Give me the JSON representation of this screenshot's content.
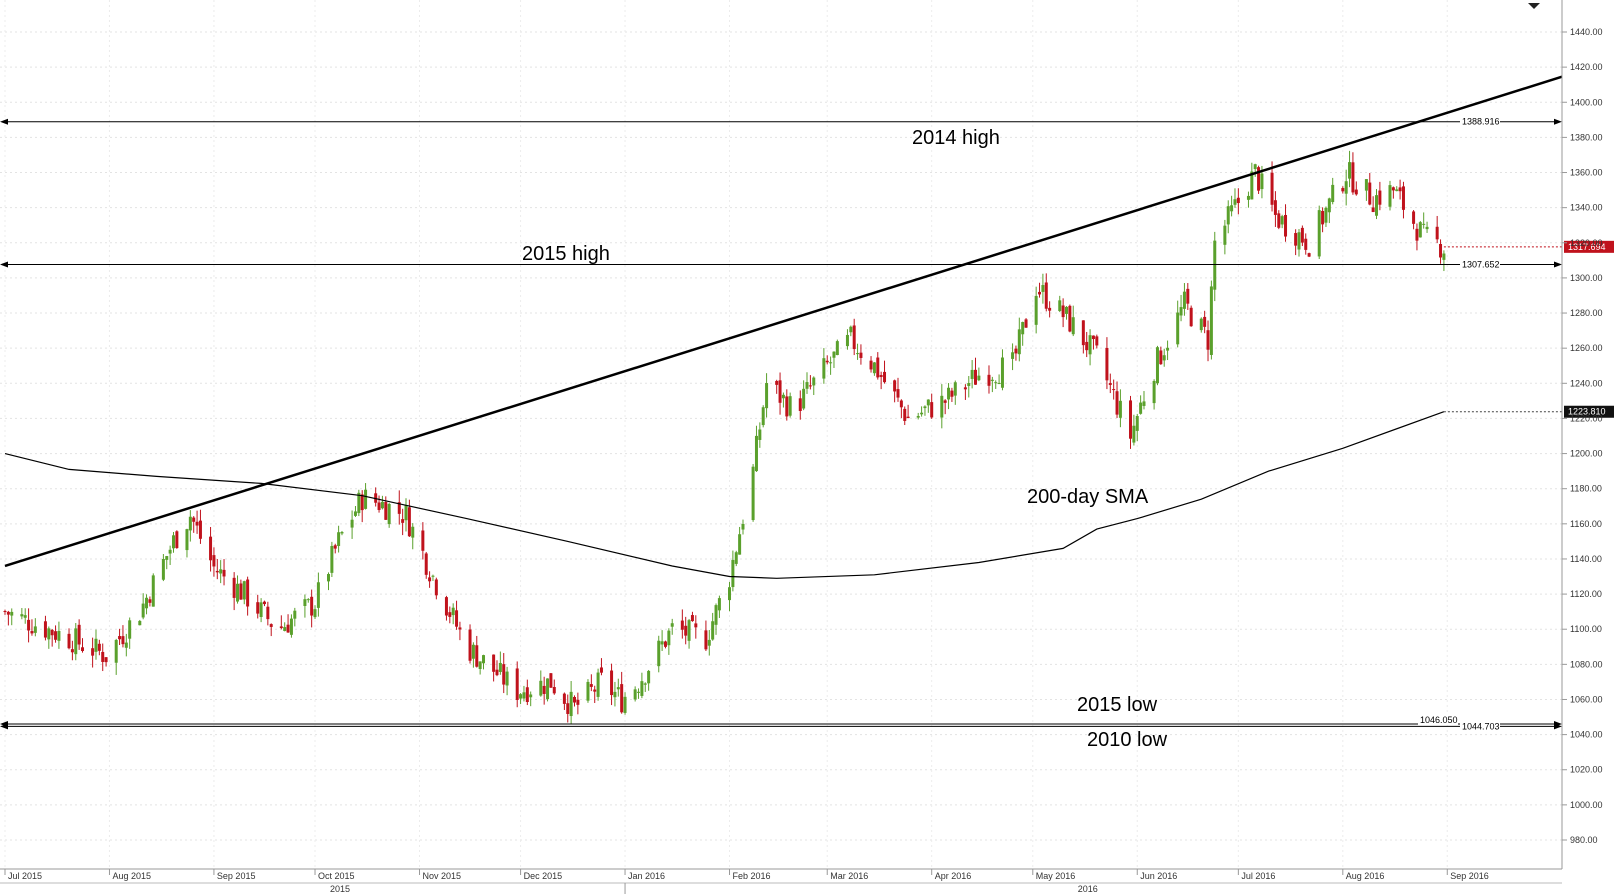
{
  "chart_data": {
    "type": "candlestick",
    "title": "",
    "ylim": [
      960,
      1460
    ],
    "grid": true,
    "y_ticks": [
      "980.00",
      "1000.00",
      "1020.00",
      "1040.00",
      "1060.00",
      "1080.00",
      "1100.00",
      "1120.00",
      "1140.00",
      "1160.00",
      "1180.00",
      "1200.00",
      "1220.00",
      "1240.00",
      "1260.00",
      "1280.00",
      "1300.00",
      "1320.00",
      "1340.00",
      "1360.00",
      "1380.00",
      "1400.00",
      "1420.00",
      "1440.00"
    ],
    "x_months": [
      "Jul 2015",
      "Aug 2015",
      "Sep 2015",
      "Oct 2015",
      "Nov 2015",
      "Dec 2015",
      "Jan 2016",
      "Feb 2016",
      "Mar 2016",
      "Apr 2016",
      "May 2016",
      "Jun 2016",
      "Jul 2016",
      "Aug 2016",
      "Sep 2016"
    ],
    "x_years": [
      "2015",
      "2016"
    ],
    "close_sketch": [
      [
        "2015-07-01",
        1110
      ],
      [
        "2015-07-20",
        1095
      ],
      [
        "2015-07-31",
        1085
      ],
      [
        "2015-08-10",
        1110
      ],
      [
        "2015-08-20",
        1150
      ],
      [
        "2015-08-25",
        1165
      ],
      [
        "2015-09-01",
        1135
      ],
      [
        "2015-09-10",
        1120
      ],
      [
        "2015-09-20",
        1100
      ],
      [
        "2015-10-01",
        1115
      ],
      [
        "2015-10-08",
        1150
      ],
      [
        "2015-10-15",
        1175
      ],
      [
        "2015-10-20",
        1172
      ],
      [
        "2015-10-28",
        1165
      ],
      [
        "2015-11-05",
        1130
      ],
      [
        "2015-11-15",
        1090
      ],
      [
        "2015-11-30",
        1065
      ],
      [
        "2015-12-10",
        1070
      ],
      [
        "2015-12-17",
        1055
      ],
      [
        "2015-12-25",
        1070
      ],
      [
        "2015-12-31",
        1060
      ],
      [
        "2016-01-05",
        1070
      ],
      [
        "2016-01-15",
        1100
      ],
      [
        "2016-01-25",
        1095
      ],
      [
        "2016-02-01",
        1130
      ],
      [
        "2016-02-08",
        1190
      ],
      [
        "2016-02-12",
        1240
      ],
      [
        "2016-02-20",
        1225
      ],
      [
        "2016-03-01",
        1250
      ],
      [
        "2016-03-08",
        1265
      ],
      [
        "2016-03-15",
        1250
      ],
      [
        "2016-03-25",
        1220
      ],
      [
        "2016-04-05",
        1230
      ],
      [
        "2016-04-15",
        1245
      ],
      [
        "2016-04-25",
        1250
      ],
      [
        "2016-05-02",
        1295
      ],
      [
        "2016-05-12",
        1275
      ],
      [
        "2016-05-20",
        1255
      ],
      [
        "2016-05-30",
        1210
      ],
      [
        "2016-06-05",
        1245
      ],
      [
        "2016-06-15",
        1285
      ],
      [
        "2016-06-22",
        1265
      ],
      [
        "2016-06-24",
        1320
      ],
      [
        "2016-07-06",
        1360
      ],
      [
        "2016-07-12",
        1335
      ],
      [
        "2016-07-22",
        1320
      ],
      [
        "2016-08-02",
        1360
      ],
      [
        "2016-08-10",
        1345
      ],
      [
        "2016-08-16",
        1350
      ],
      [
        "2016-08-25",
        1323
      ],
      [
        "2016-08-31",
        1317.694
      ]
    ],
    "sma200": {
      "name": "200-day SMA",
      "points": [
        [
          "2015-07-01",
          1200
        ],
        [
          "2015-07-20",
          1191
        ],
        [
          "2015-08-15",
          1187
        ],
        [
          "2015-09-15",
          1183
        ],
        [
          "2015-10-15",
          1176
        ],
        [
          "2015-11-15",
          1163
        ],
        [
          "2015-12-15",
          1150
        ],
        [
          "2016-01-15",
          1136
        ],
        [
          "2016-02-01",
          1130
        ],
        [
          "2016-02-15",
          1129
        ],
        [
          "2016-03-15",
          1131
        ],
        [
          "2016-04-15",
          1138
        ],
        [
          "2016-05-10",
          1146
        ],
        [
          "2016-05-20",
          1157
        ],
        [
          "2016-06-01",
          1163
        ],
        [
          "2016-06-20",
          1174
        ],
        [
          "2016-07-10",
          1190
        ],
        [
          "2016-08-01",
          1203
        ],
        [
          "2016-08-31",
          1223.81
        ]
      ]
    },
    "trendline": {
      "start": [
        "2015-07-01",
        1136
      ],
      "end": [
        "2016-09-05",
        1410
      ]
    },
    "levels": [
      {
        "label": "2014 high",
        "value": 1388.916,
        "value_label": "1388.916"
      },
      {
        "label": "2015 high",
        "value": 1307.652,
        "value_label": "1307.652"
      },
      {
        "label": "2015 low",
        "value": 1046.05,
        "value_label": "1046.050"
      },
      {
        "label": "2010 low",
        "value": 1044.703,
        "value_label": "1044.703"
      }
    ],
    "current_price": "1317.694",
    "sma_current": "1223.810",
    "annotations": {
      "high_2014": "2014 high",
      "high_2015": "2015 high",
      "sma": "200-day SMA",
      "low_2015": "2015 low",
      "low_2010": "2010 low"
    },
    "colors": {
      "up": "#5aa02c",
      "down": "#c0121c",
      "line": "#000000",
      "tag_bg": "#c0121c",
      "sma_tag_bg": "#111111"
    }
  }
}
